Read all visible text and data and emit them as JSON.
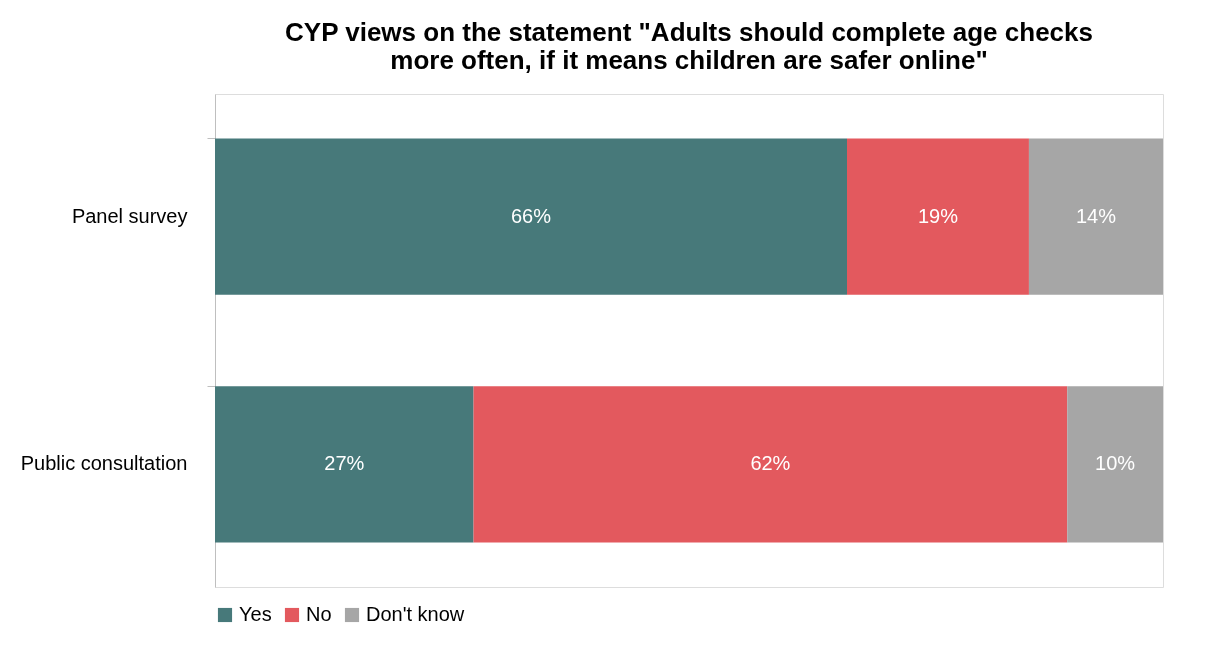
{
  "chart_data": {
    "type": "bar",
    "orientation": "horizontal",
    "stacked": true,
    "title": "CYP views on the statement \"Adults should complete age checks more often, if it means children are safer online\"",
    "categories": [
      "Panel survey",
      "Public consultation"
    ],
    "series": [
      {
        "name": "Yes",
        "color": "#47797a",
        "values": [
          66,
          27
        ],
        "value_labels": [
          "66%",
          "27%"
        ]
      },
      {
        "name": "No",
        "color": "#e3595e",
        "values": [
          19,
          62
        ],
        "value_labels": [
          "19%",
          "62%"
        ]
      },
      {
        "name": "Don't know",
        "color": "#a6a6a6",
        "values": [
          14,
          10
        ],
        "value_labels": [
          "14%",
          "10%"
        ]
      }
    ],
    "legend": "bottom",
    "grid": false
  }
}
